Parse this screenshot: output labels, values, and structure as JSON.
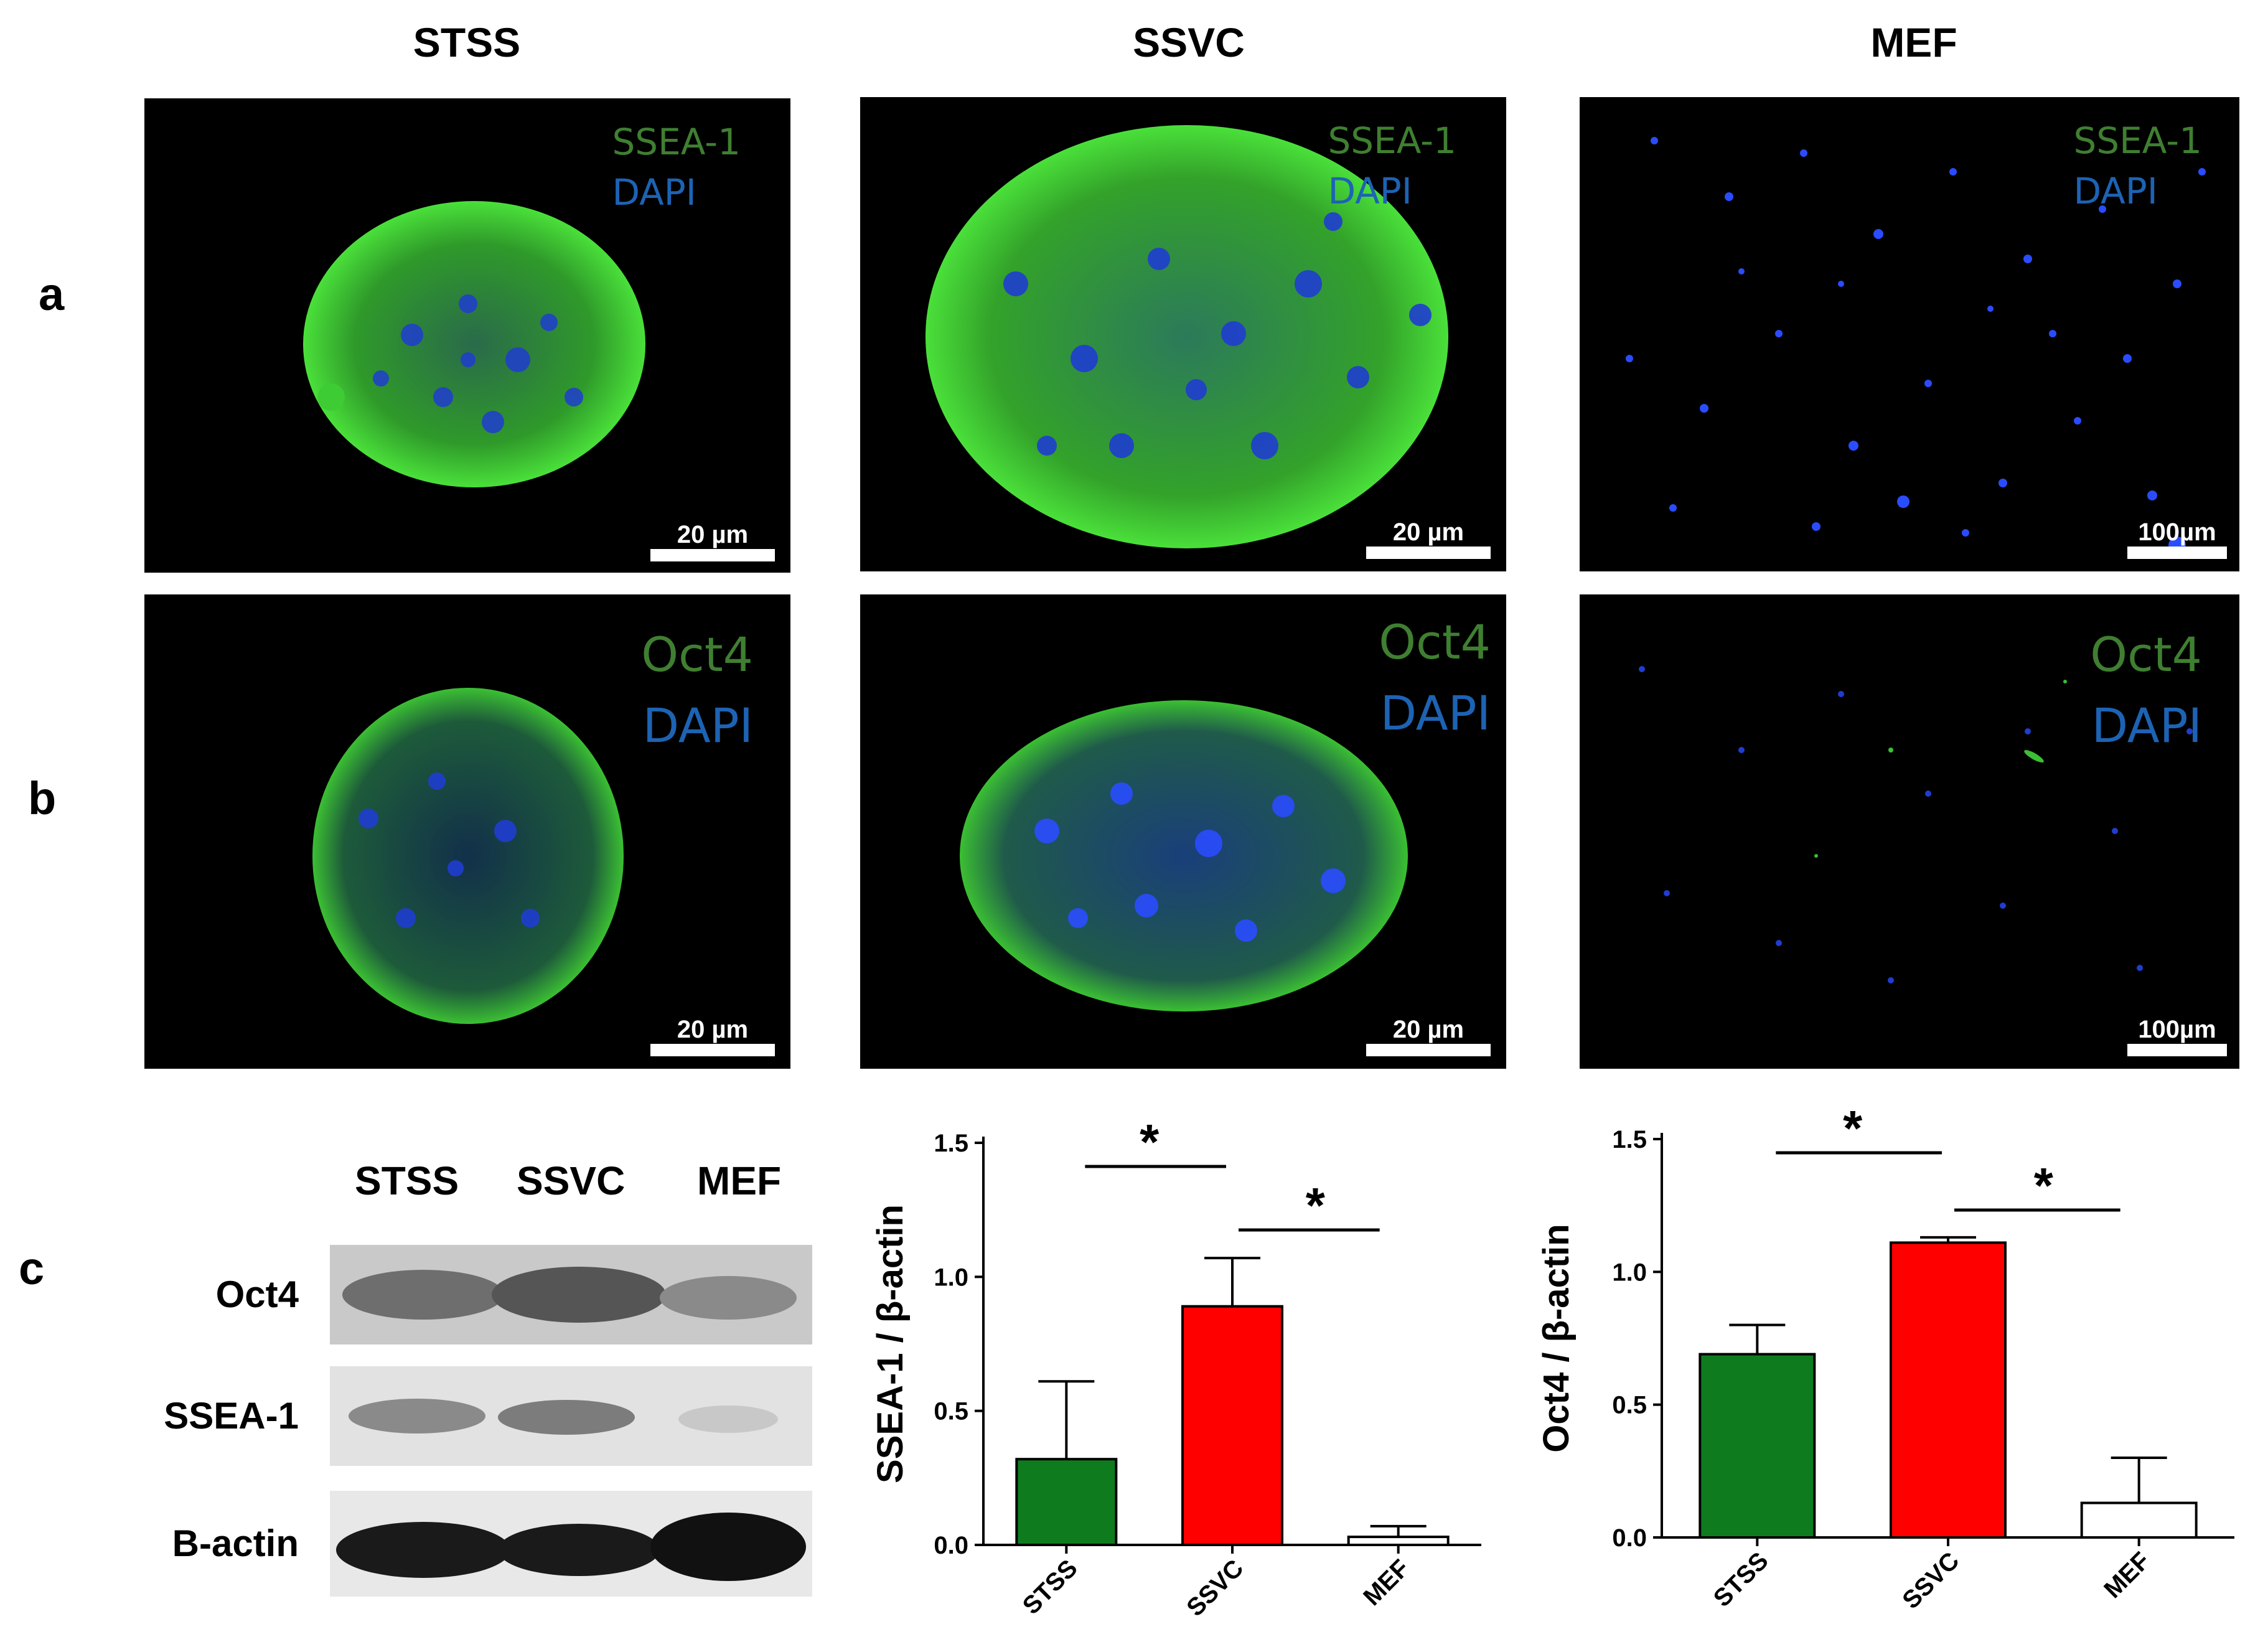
{
  "columns": [
    "STSS",
    "SSVC",
    "MEF"
  ],
  "rows": [
    "a",
    "b",
    "c"
  ],
  "panels": {
    "a": {
      "channels": [
        "SSEA-1",
        "DAPI"
      ],
      "scalebars": [
        "20 µm",
        "20 µm",
        "100µm"
      ]
    },
    "b": {
      "channels": [
        "Oct4",
        "DAPI"
      ],
      "scalebars": [
        "20 µm",
        "20 µm",
        "100µm"
      ]
    }
  },
  "western_blot": {
    "lanes": [
      "STSS",
      "SSVC",
      "MEF"
    ],
    "proteins": [
      "Oct4",
      "SSEA-1",
      "B-actin"
    ]
  },
  "colors": {
    "stss": "#0e7c1e",
    "ssvc": "#ff0000",
    "mef": "#ffffff",
    "green_label": "#3f7f31",
    "blue_label": "#1d63b4"
  },
  "chart_data": [
    {
      "type": "bar",
      "ylabel": "SSEA-1 / β-actin",
      "categories": [
        "STSS",
        "SSVC",
        "MEF"
      ],
      "values": [
        0.32,
        0.89,
        0.03
      ],
      "errors": [
        0.29,
        0.18,
        0.04
      ],
      "ylim": [
        0,
        1.5
      ],
      "yticks": [
        "0.0",
        "0.5",
        "1.0",
        "1.5"
      ],
      "significance": [
        "*",
        "*"
      ]
    },
    {
      "type": "bar",
      "ylabel": "Oct4 / β-actin",
      "categories": [
        "STSS",
        "SSVC",
        "MEF"
      ],
      "values": [
        0.69,
        1.11,
        0.13
      ],
      "errors": [
        0.11,
        0.02,
        0.17
      ],
      "ylim": [
        0,
        1.5
      ],
      "yticks": [
        "0.0",
        "0.5",
        "1.0",
        "1.5"
      ],
      "significance": [
        "*",
        "*"
      ]
    }
  ]
}
